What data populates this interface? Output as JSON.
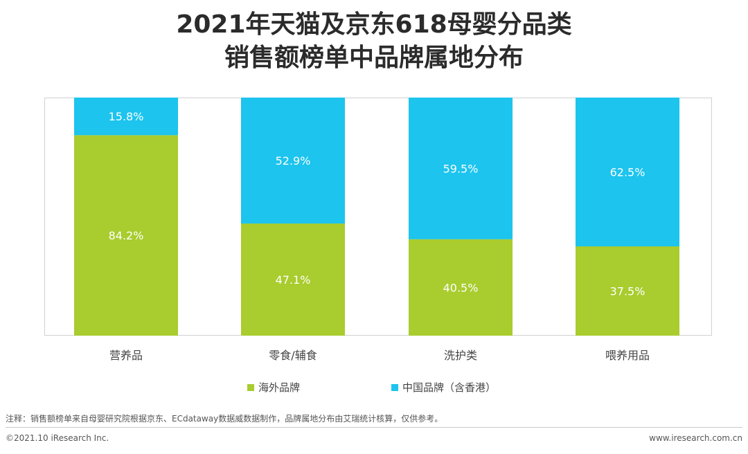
{
  "header": {
    "title_line1": "2021年天猫及京东618母婴分品类",
    "title_line2": "销售额榜单中品牌属地分布"
  },
  "colors": {
    "overseas": "#a9cc2e",
    "domestic": "#1cc4ee",
    "frame": "#d0d0d0",
    "text": "#444444"
  },
  "chart_data": {
    "type": "bar",
    "stacked": true,
    "percent": true,
    "categories": [
      "营养品",
      "零食/辅食",
      "洗护类",
      "喂养用品"
    ],
    "series": [
      {
        "name": "海外品牌",
        "values": [
          84.2,
          47.1,
          40.5,
          37.5
        ],
        "labels": [
          "84.2%",
          "47.1%",
          "40.5%",
          "37.5%"
        ]
      },
      {
        "name": "中国品牌（含香港）",
        "values": [
          15.8,
          52.9,
          59.5,
          62.5
        ],
        "labels": [
          "15.8%",
          "52.9%",
          "59.5%",
          "62.5%"
        ]
      }
    ],
    "ylim": [
      0,
      100
    ],
    "legend_position": "bottom"
  },
  "footer": {
    "note": "注释：销售额榜单来自母婴研究院根据京东、ECdataway数据威数据制作，品牌属地分布由艾瑞统计核算，仅供参考。",
    "copyright": "©2021.10 iResearch Inc.",
    "website": "www.iresearch.com.cn"
  }
}
